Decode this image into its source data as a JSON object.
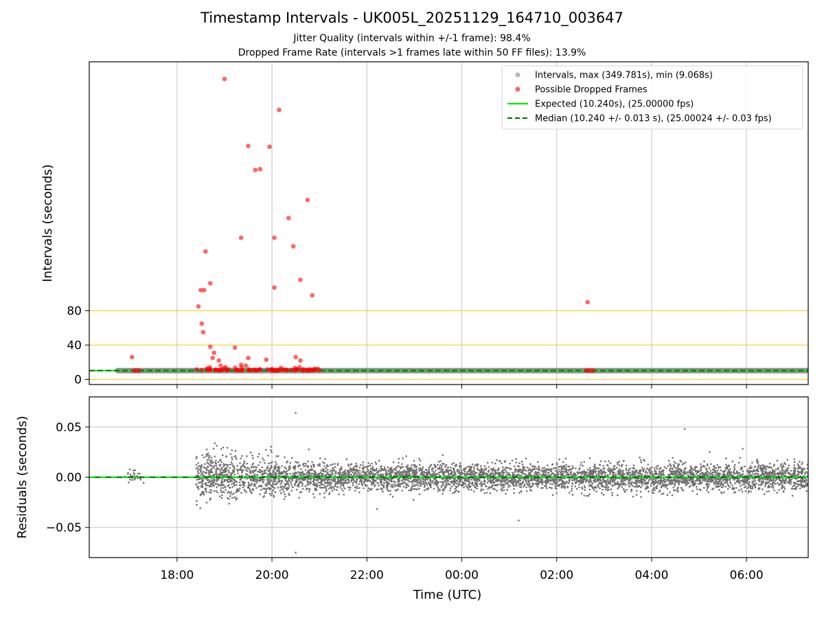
{
  "figure": {
    "title": "Timestamp Intervals - UK005L_20251129_164710_003647",
    "subtitle_jitter": "Jitter Quality (intervals within +/-1 frame): 98.4%",
    "subtitle_dropped": "Dropped Frame Rate (intervals >1 frames late within 50 FF files): 13.9%"
  },
  "colors": {
    "intervals": "#808080",
    "dropped": "#ff0000",
    "expected": "#00ee00",
    "median": "#007700",
    "threshold_lines": "#f5d142",
    "grid": "#cccccc",
    "residuals": "#707070"
  },
  "chart_data": [
    {
      "type": "scatter",
      "name": "top-intervals",
      "ylabel": "Intervals (seconds)",
      "x_range_hours": [
        16.15,
        31.3
      ],
      "ylim": [
        -6,
        370
      ],
      "yticks": [
        0,
        40,
        80
      ],
      "ytick_labels": [
        "0",
        "40",
        "80"
      ],
      "xticks": [
        18,
        20,
        22,
        24,
        26,
        28,
        30
      ],
      "grid": "x",
      "threshold_lines": [
        0,
        40,
        80
      ],
      "legend_position": "top-right",
      "legend": [
        "Intervals, max (349.781s), min (9.068s)",
        "Possible Dropped Frames",
        "Expected (10.240s), (25.00000 fps)",
        "Median (10.240 +/- 0.013 s), (25.00024 +/- 0.03 fps)"
      ],
      "expected_value": 10.24,
      "median_value": 10.24,
      "regular_interval_span_hours": [
        16.75,
        31.3
      ],
      "dropped_frames": [
        [
          19.0,
          350
        ],
        [
          20.15,
          314
        ],
        [
          19.5,
          272
        ],
        [
          19.95,
          271
        ],
        [
          19.65,
          244
        ],
        [
          19.75,
          245
        ],
        [
          20.75,
          209
        ],
        [
          20.35,
          188
        ],
        [
          19.35,
          165
        ],
        [
          20.05,
          165
        ],
        [
          20.45,
          155
        ],
        [
          18.6,
          149
        ],
        [
          20.6,
          116
        ],
        [
          18.7,
          112
        ],
        [
          18.5,
          104
        ],
        [
          18.57,
          104
        ],
        [
          20.05,
          107
        ],
        [
          20.85,
          98
        ],
        [
          18.45,
          85
        ],
        [
          26.65,
          90
        ],
        [
          18.52,
          65
        ],
        [
          18.55,
          55
        ],
        [
          18.7,
          38
        ],
        [
          19.22,
          37
        ],
        [
          18.78,
          31
        ],
        [
          18.75,
          25
        ],
        [
          18.88,
          22
        ],
        [
          19.5,
          25
        ],
        [
          19.88,
          23
        ],
        [
          20.5,
          26
        ],
        [
          20.6,
          22
        ],
        [
          17.05,
          26
        ],
        [
          19.35,
          17
        ],
        [
          18.92,
          16
        ],
        [
          19.45,
          16
        ],
        [
          19.0,
          13
        ],
        [
          18.65,
          11
        ],
        [
          18.82,
          11
        ],
        [
          19.05,
          11
        ],
        [
          19.6,
          11
        ],
        [
          20.0,
          12
        ],
        [
          20.4,
          11
        ],
        [
          20.7,
          11
        ],
        [
          20.9,
          11
        ],
        [
          17.1,
          10.24
        ],
        [
          17.15,
          10.24
        ],
        [
          17.2,
          10.24
        ],
        [
          26.62,
          10.24
        ],
        [
          26.67,
          10.24
        ],
        [
          26.72,
          10.24
        ],
        [
          26.77,
          10.24
        ]
      ],
      "dropped_cluster_range_hours": [
        18.4,
        21.0
      ]
    },
    {
      "type": "scatter",
      "name": "bottom-residuals",
      "xlabel": "Time (UTC)",
      "ylabel": "Residuals (seconds)",
      "x_range_hours": [
        16.15,
        31.3
      ],
      "ylim": [
        -0.08,
        0.08
      ],
      "yticks": [
        -0.05,
        0.0,
        0.05
      ],
      "ytick_labels": [
        "−0.05",
        "0.00",
        "0.05"
      ],
      "xticks": [
        18,
        20,
        22,
        24,
        26,
        28,
        30
      ],
      "xtick_labels": [
        "18:00",
        "20:00",
        "22:00",
        "00:00",
        "02:00",
        "04:00",
        "06:00"
      ],
      "grid": "both",
      "outliers": [
        [
          20.5,
          0.064
        ],
        [
          20.5,
          -0.075
        ],
        [
          28.7,
          0.048
        ],
        [
          25.2,
          -0.043
        ]
      ],
      "early_cluster_hours": [
        16.9,
        17.3
      ],
      "early_cluster_spread": 0.006,
      "dense_band_start_hours": 18.4,
      "dense_band_spread_early": 0.022,
      "dense_band_spread_late": 0.012
    }
  ]
}
